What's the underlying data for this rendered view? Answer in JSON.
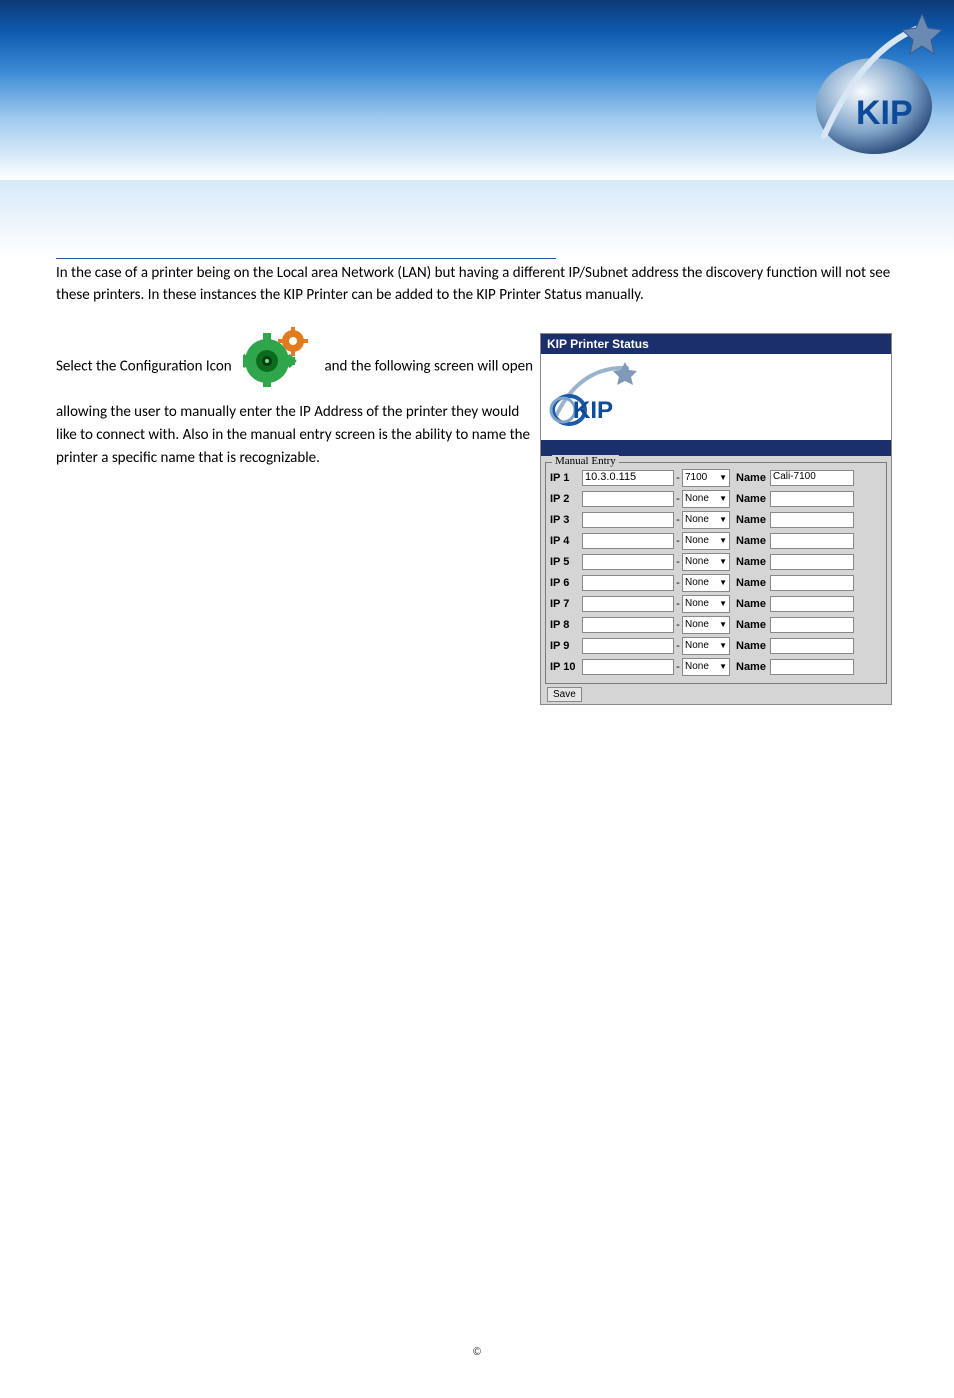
{
  "header": {
    "brand": "KIP",
    "logo_colors": {
      "ring_outer": "#8fa7c4",
      "ring_inner": "#0d2d6a",
      "star": "#4d76b0",
      "text": "#0d4b9a"
    }
  },
  "rule_color": "#2457a5",
  "intro_text": "In the case of a printer being on the Local area Network (LAN) but having a different IP/Subnet address the discovery function will not see these printers.  In these instances the KIP Printer can be added to the KIP Printer Status manually.",
  "instructions": {
    "before_icon": "Select the Configuration Icon",
    "after_icon": " and the following screen will open allowing the user to manually enter the IP Address of the printer they would like to connect with. Also in the manual entry screen is the ability to name the printer a specific name that is recognizable."
  },
  "gear_icon": {
    "colors": {
      "big": "#2fa64b",
      "swirl": "#0d6b1f",
      "small": "#e07b1f",
      "center": "#ffffff"
    }
  },
  "kps": {
    "title": "KIP Printer Status",
    "logo_text": "KIP",
    "fieldset_legend": "Manual Entry",
    "name_label": "Name",
    "save_label": "Save",
    "rows": [
      {
        "label": "IP 1",
        "ip": "10.3.0.115",
        "type": "7100",
        "name": "Cali-7100"
      },
      {
        "label": "IP 2",
        "ip": "",
        "type": "None",
        "name": ""
      },
      {
        "label": "IP 3",
        "ip": "",
        "type": "None",
        "name": ""
      },
      {
        "label": "IP 4",
        "ip": "",
        "type": "None",
        "name": ""
      },
      {
        "label": "IP 5",
        "ip": "",
        "type": "None",
        "name": ""
      },
      {
        "label": "IP 6",
        "ip": "",
        "type": "None",
        "name": ""
      },
      {
        "label": "IP 7",
        "ip": "",
        "type": "None",
        "name": ""
      },
      {
        "label": "IP 8",
        "ip": "",
        "type": "None",
        "name": ""
      },
      {
        "label": "IP 9",
        "ip": "",
        "type": "None",
        "name": ""
      },
      {
        "label": "IP 10",
        "ip": "",
        "type": "None",
        "name": ""
      }
    ]
  },
  "footer": {
    "copyright": "©"
  }
}
